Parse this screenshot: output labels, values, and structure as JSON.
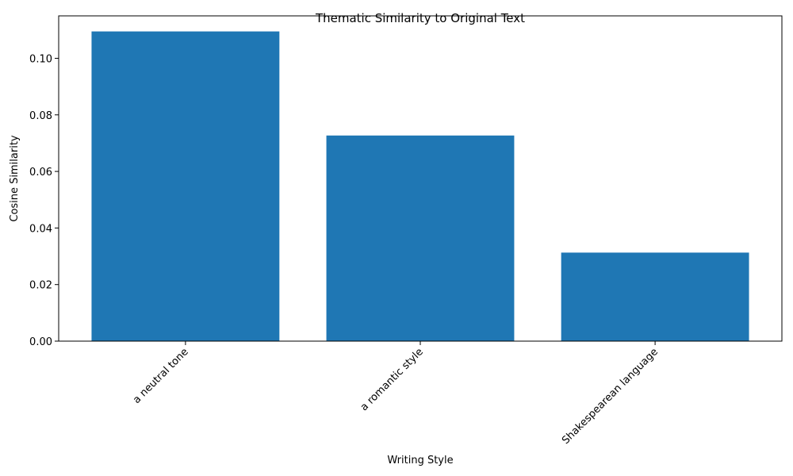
{
  "chart_data": {
    "type": "bar",
    "title": "Thematic Similarity to Original Text",
    "xlabel": "Writing Style",
    "ylabel": "Cosine Similarity",
    "categories": [
      "a neutral tone",
      "a romantic style",
      "Shakespearean language"
    ],
    "values": [
      0.1095,
      0.0727,
      0.0313
    ],
    "ylim": [
      0,
      0.115
    ],
    "yticks": [
      0.0,
      0.02,
      0.04,
      0.06,
      0.08,
      0.1
    ],
    "ytick_labels": [
      "0.00",
      "0.02",
      "0.04",
      "0.06",
      "0.08",
      "0.10"
    ],
    "grid": false,
    "legend": "none",
    "bar_color": "#1f77b4",
    "xtick_rotation_deg": 45
  }
}
